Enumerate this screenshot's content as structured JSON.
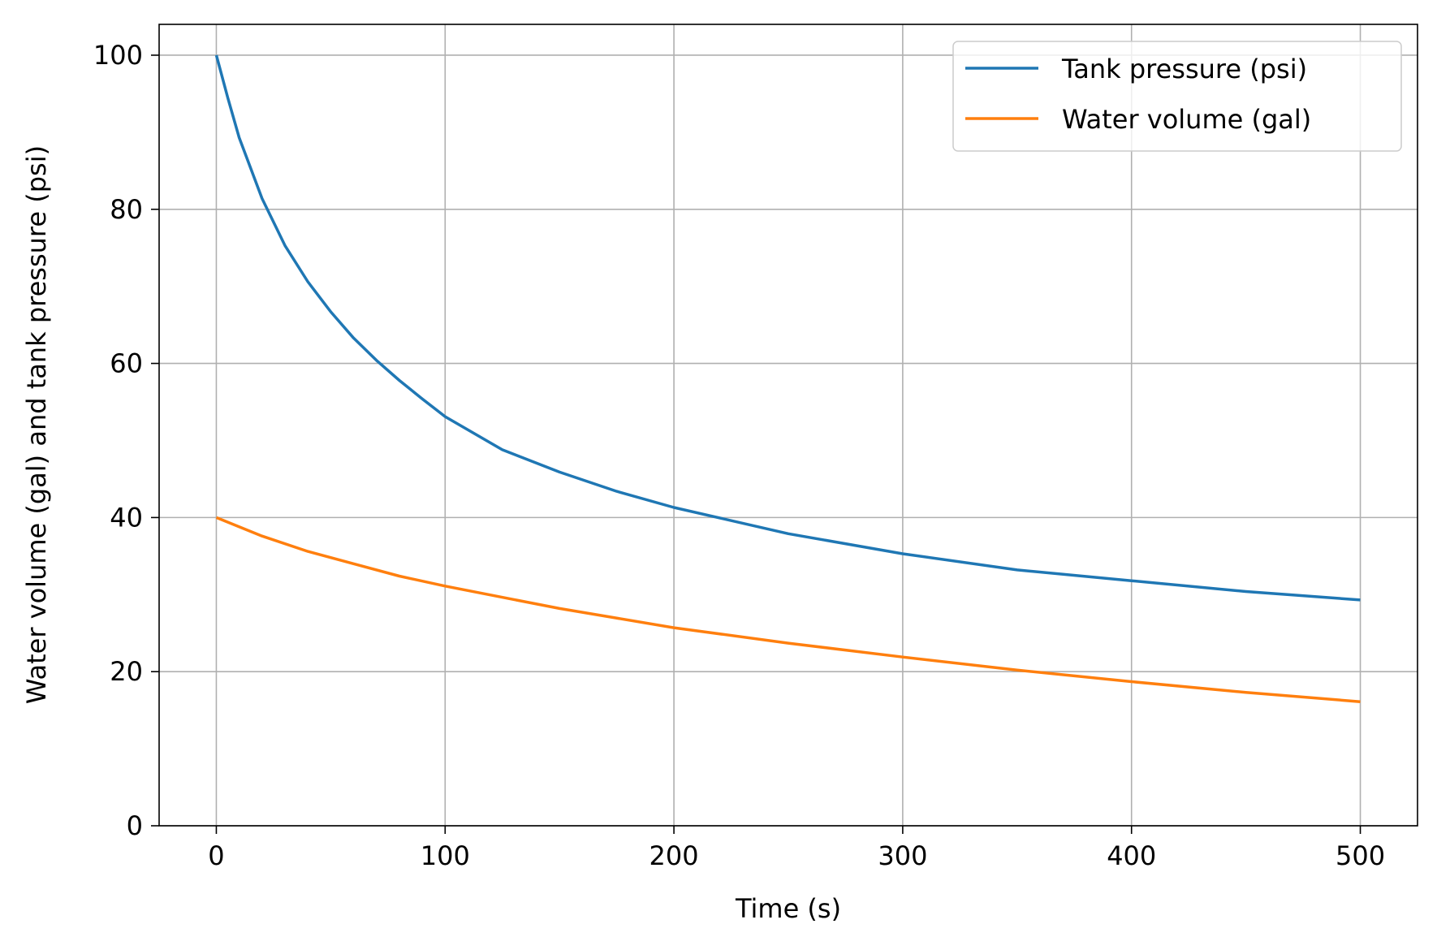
{
  "chart_data": {
    "type": "line",
    "title": "",
    "xlabel": "Time (s)",
    "ylabel": "Water volume (gal) and tank pressure (psi)",
    "xlim": [
      -25,
      525
    ],
    "ylim": [
      0,
      104
    ],
    "xticks": [
      0,
      100,
      200,
      300,
      400,
      500
    ],
    "yticks": [
      0,
      20,
      40,
      60,
      80,
      100
    ],
    "grid": true,
    "legend_position": "top-right",
    "series": [
      {
        "name": "Tank pressure (psi)",
        "color": "#1f77b4",
        "x": [
          0,
          5,
          10,
          20,
          30,
          40,
          50,
          60,
          70,
          80,
          90,
          100,
          125,
          150,
          175,
          200,
          250,
          300,
          350,
          400,
          450,
          500
        ],
        "y": [
          100,
          94.5,
          89.3,
          81.4,
          75.3,
          70.6,
          66.7,
          63.3,
          60.4,
          57.8,
          55.4,
          53.1,
          48.8,
          45.9,
          43.4,
          41.3,
          37.9,
          35.3,
          33.2,
          31.8,
          30.4,
          29.3
        ]
      },
      {
        "name": "Water volume (gal)",
        "color": "#ff7f0e",
        "x": [
          0,
          20,
          40,
          60,
          80,
          100,
          150,
          200,
          250,
          300,
          350,
          400,
          450,
          500
        ],
        "y": [
          40,
          37.6,
          35.6,
          34.0,
          32.4,
          31.1,
          28.2,
          25.7,
          23.7,
          21.9,
          20.2,
          18.7,
          17.3,
          16.1
        ]
      }
    ]
  }
}
